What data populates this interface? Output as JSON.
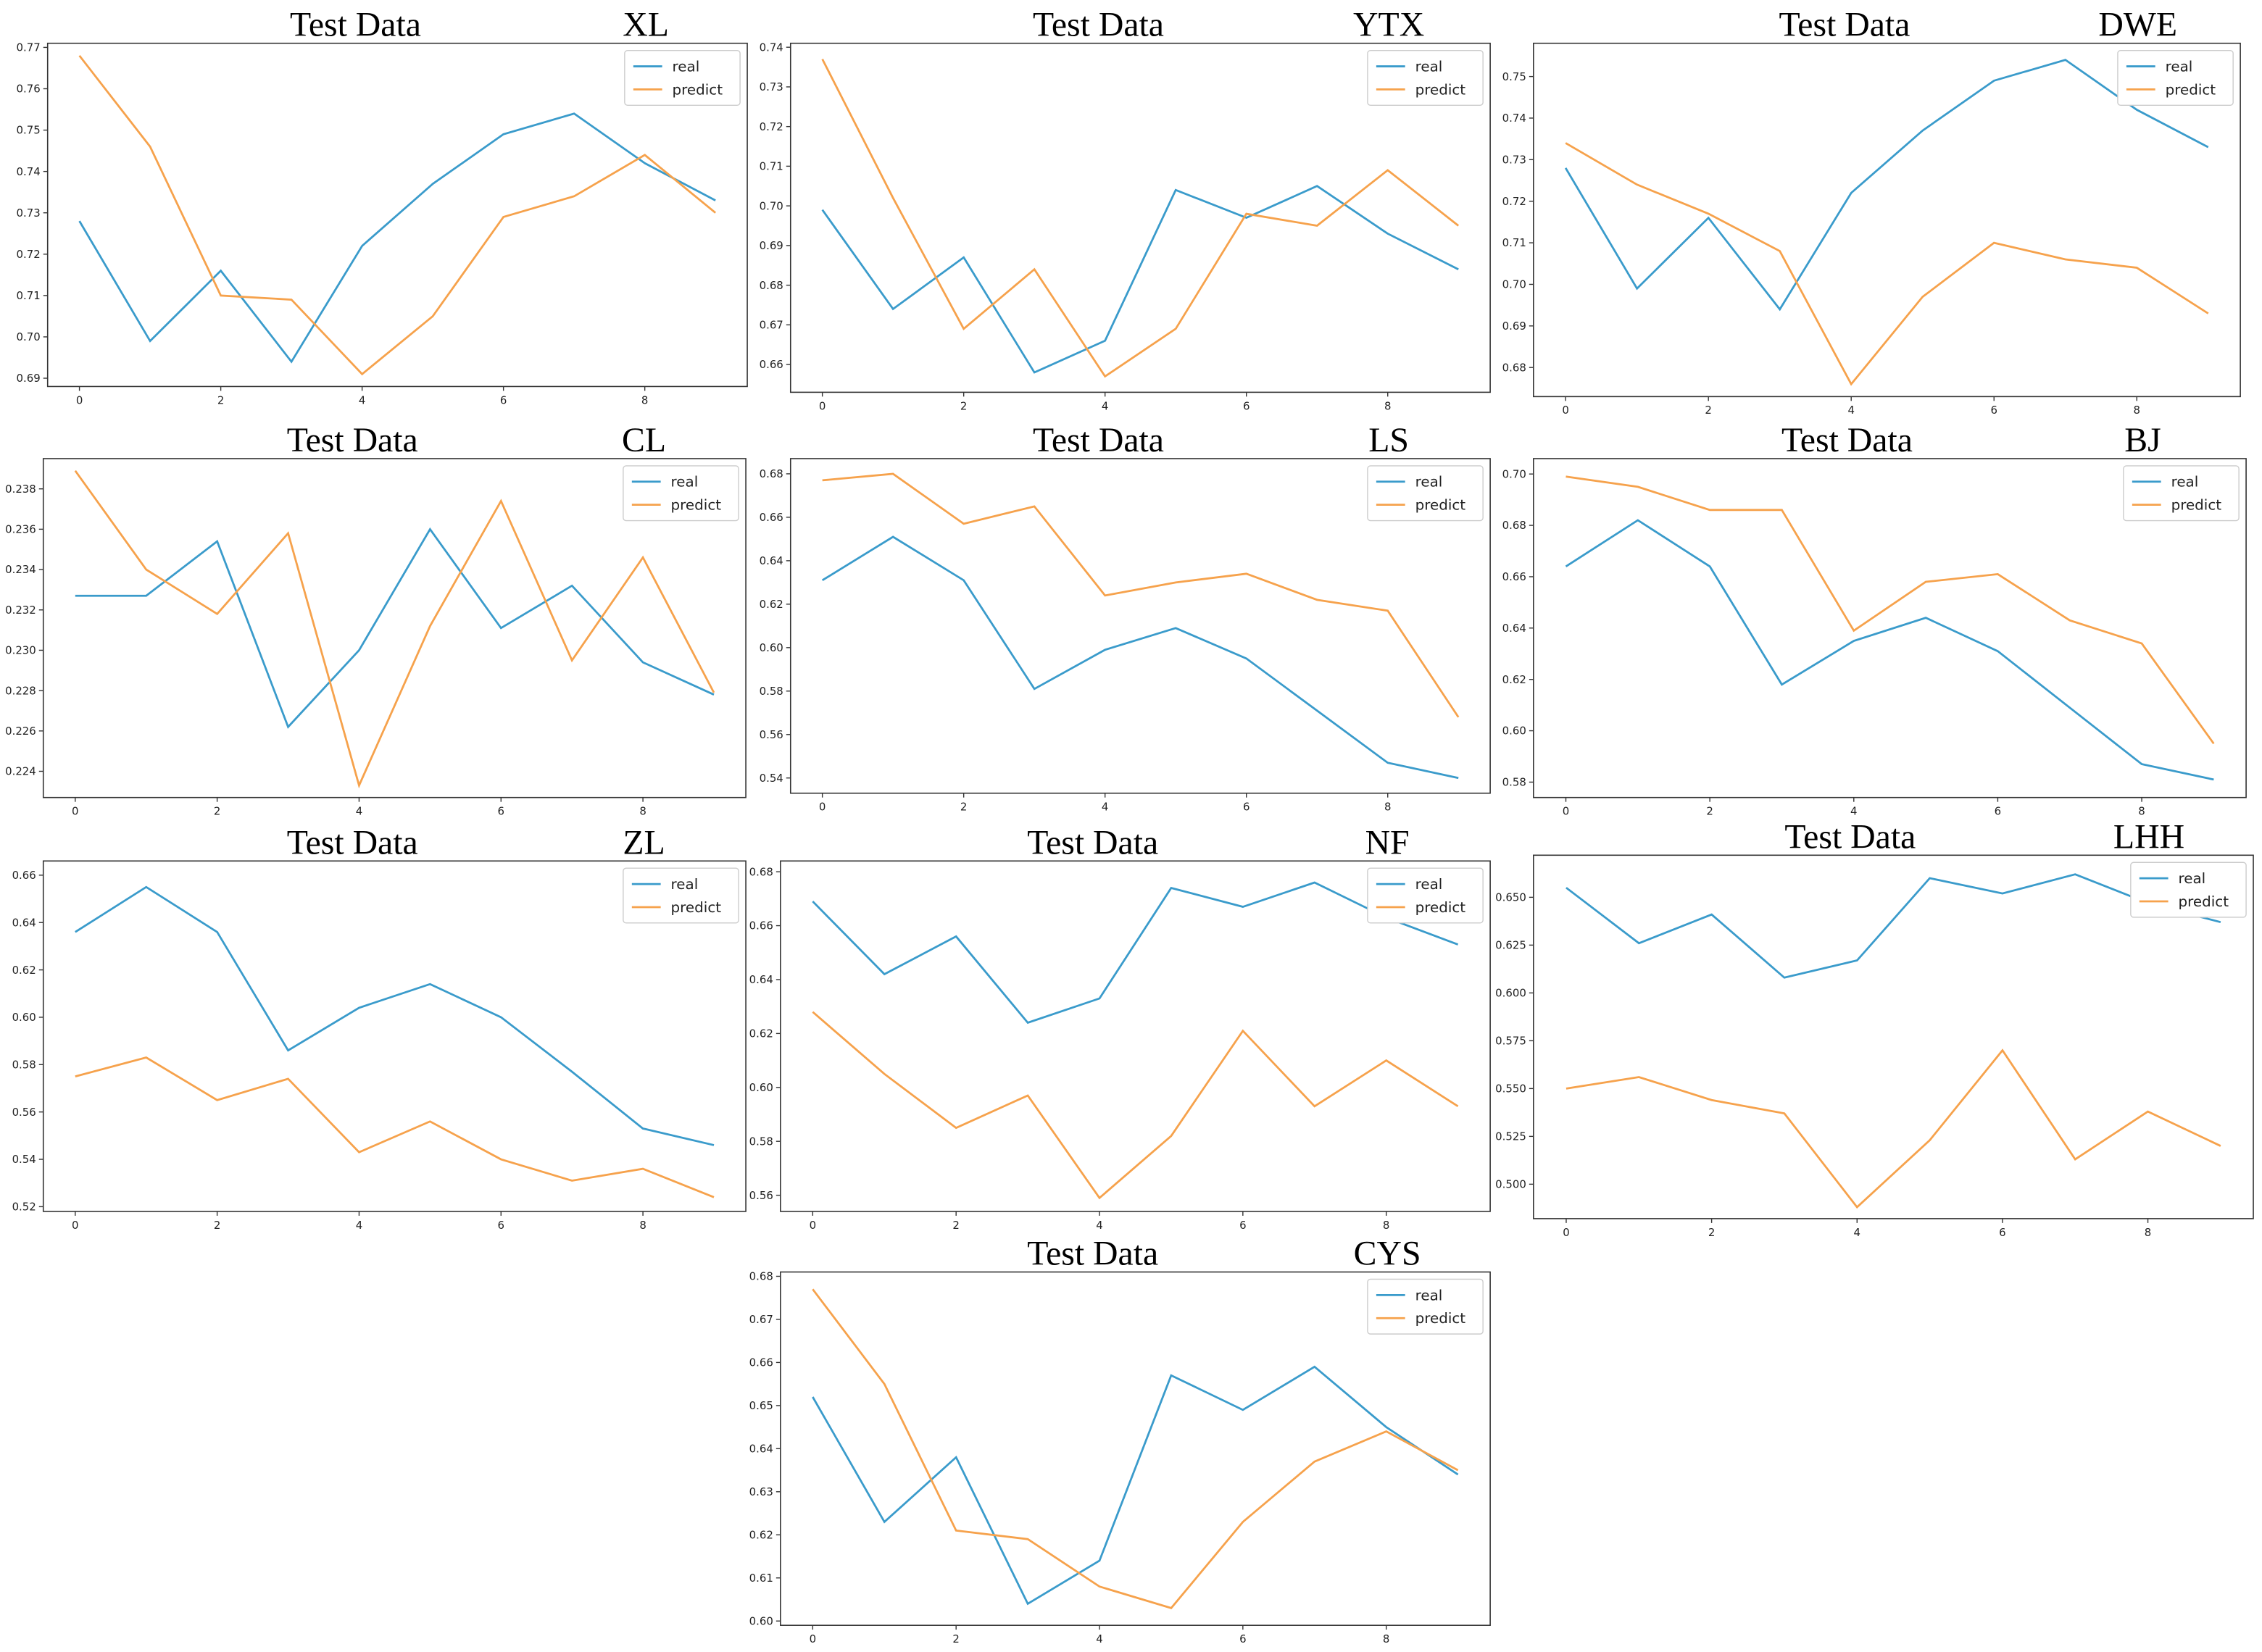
{
  "chart_data": [
    {
      "type": "line",
      "title": "Test Data",
      "label": "XL",
      "x": [
        0,
        1,
        2,
        3,
        4,
        5,
        6,
        7,
        8,
        9
      ],
      "xlim": [
        -0.45,
        9.45
      ],
      "xticks": [
        0,
        2,
        4,
        6,
        8
      ],
      "ylim": [
        0.688,
        0.771
      ],
      "yticks": [
        0.69,
        {
          "value": 0.7,
          "label": "0.70"
        },
        0.71,
        0.72,
        0.73,
        0.74,
        0.75,
        0.76,
        0.77
      ],
      "legend": "upper right",
      "series": [
        {
          "name": "real",
          "color": "#3a9bcb",
          "values": [
            0.728,
            0.699,
            0.716,
            0.694,
            0.722,
            0.737,
            0.749,
            0.754,
            0.742,
            0.733
          ]
        },
        {
          "name": "predict",
          "color": "#f6a24c",
          "values": [
            0.768,
            0.746,
            0.71,
            0.709,
            0.691,
            0.705,
            0.729,
            0.734,
            0.744,
            0.73
          ]
        }
      ]
    },
    {
      "type": "line",
      "title": "Test Data",
      "label": "YTX",
      "x": [
        0,
        1,
        2,
        3,
        4,
        5,
        6,
        7,
        8,
        9
      ],
      "xlim": [
        -0.45,
        9.45
      ],
      "xticks": [
        0,
        2,
        4,
        6,
        8
      ],
      "ylim": [
        0.653,
        0.741
      ],
      "yticks": [
        0.66,
        0.67,
        0.68,
        0.69,
        {
          "value": 0.7,
          "label": "0.70"
        },
        0.71,
        0.72,
        0.73,
        0.74
      ],
      "legend": "upper right",
      "series": [
        {
          "name": "real",
          "color": "#3a9bcb",
          "values": [
            0.699,
            0.674,
            0.687,
            0.658,
            0.666,
            0.704,
            0.697,
            0.705,
            0.693,
            0.684
          ]
        },
        {
          "name": "predict",
          "color": "#f6a24c",
          "values": [
            0.737,
            0.702,
            0.669,
            0.684,
            0.657,
            0.669,
            0.698,
            0.695,
            0.709,
            0.695
          ]
        }
      ]
    },
    {
      "type": "line",
      "title": "Test Data",
      "label": "DWE",
      "x": [
        0,
        1,
        2,
        3,
        4,
        5,
        6,
        7,
        8,
        9
      ],
      "xlim": [
        -0.45,
        9.45
      ],
      "xticks": [
        0,
        2,
        4,
        6,
        8
      ],
      "ylim": [
        0.673,
        0.758
      ],
      "yticks": [
        0.68,
        0.69,
        {
          "value": 0.7,
          "label": "0.70"
        },
        0.71,
        0.72,
        0.73,
        0.74,
        0.75
      ],
      "legend": "upper right",
      "series": [
        {
          "name": "real",
          "color": "#3a9bcb",
          "values": [
            0.728,
            0.699,
            0.716,
            0.694,
            0.722,
            0.737,
            0.749,
            0.754,
            0.742,
            0.733
          ]
        },
        {
          "name": "predict",
          "color": "#f6a24c",
          "values": [
            0.734,
            0.724,
            0.717,
            0.708,
            0.676,
            0.697,
            0.71,
            0.706,
            0.704,
            0.693
          ]
        }
      ]
    },
    {
      "type": "line",
      "title": "Test Data",
      "label": "CL",
      "x": [
        0,
        1,
        2,
        3,
        4,
        5,
        6,
        7,
        8,
        9
      ],
      "xlim": [
        -0.45,
        9.45
      ],
      "xticks": [
        0,
        2,
        4,
        6,
        8
      ],
      "ylim": [
        0.2227,
        0.2395
      ],
      "yticks": [
        0.224,
        0.226,
        0.228,
        {
          "value": 0.23,
          "label": "0.230"
        },
        0.232,
        0.234,
        0.236,
        0.238
      ],
      "legend": "upper right",
      "series": [
        {
          "name": "real",
          "color": "#3a9bcb",
          "values": [
            0.2327,
            0.2327,
            0.2354,
            0.2262,
            0.23,
            0.236,
            0.2311,
            0.2332,
            0.2294,
            0.2278
          ]
        },
        {
          "name": "predict",
          "color": "#f6a24c",
          "values": [
            0.2389,
            0.234,
            0.2318,
            0.2358,
            0.2233,
            0.2312,
            0.2374,
            0.2295,
            0.2346,
            0.2279
          ]
        }
      ]
    },
    {
      "type": "line",
      "title": "Test Data",
      "label": "LS",
      "x": [
        0,
        1,
        2,
        3,
        4,
        5,
        6,
        7,
        8,
        9
      ],
      "xlim": [
        -0.45,
        9.45
      ],
      "xticks": [
        0,
        2,
        4,
        6,
        8
      ],
      "ylim": [
        0.533,
        0.687
      ],
      "yticks": [
        0.54,
        0.56,
        0.58,
        {
          "value": 0.6,
          "label": "0.60"
        },
        0.62,
        0.64,
        0.66,
        0.68
      ],
      "legend": "upper right",
      "series": [
        {
          "name": "real",
          "color": "#3a9bcb",
          "values": [
            0.631,
            0.651,
            0.631,
            0.581,
            0.599,
            0.609,
            0.595,
            0.571,
            0.547,
            0.54
          ]
        },
        {
          "name": "predict",
          "color": "#f6a24c",
          "values": [
            0.677,
            0.68,
            0.657,
            0.665,
            0.624,
            0.63,
            0.634,
            0.622,
            0.617,
            0.568
          ]
        }
      ]
    },
    {
      "type": "line",
      "title": "Test Data",
      "label": "BJ",
      "x": [
        0,
        1,
        2,
        3,
        4,
        5,
        6,
        7,
        8,
        9
      ],
      "xlim": [
        -0.45,
        9.45
      ],
      "xticks": [
        0,
        2,
        4,
        6,
        8
      ],
      "ylim": [
        0.574,
        0.706
      ],
      "yticks": [
        0.58,
        {
          "value": 0.6,
          "label": "0.60"
        },
        0.62,
        0.64,
        0.66,
        0.68,
        {
          "value": 0.7,
          "label": "0.70"
        }
      ],
      "legend": "upper right",
      "series": [
        {
          "name": "real",
          "color": "#3a9bcb",
          "values": [
            0.664,
            0.682,
            0.664,
            0.618,
            0.635,
            0.644,
            0.631,
            0.609,
            0.587,
            0.581
          ]
        },
        {
          "name": "predict",
          "color": "#f6a24c",
          "values": [
            0.699,
            0.695,
            0.686,
            0.686,
            0.639,
            0.658,
            0.661,
            0.643,
            0.634,
            0.595
          ]
        }
      ]
    },
    {
      "type": "line",
      "title": "Test Data",
      "label": "ZL",
      "x": [
        0,
        1,
        2,
        3,
        4,
        5,
        6,
        7,
        8,
        9
      ],
      "xlim": [
        -0.45,
        9.45
      ],
      "xticks": [
        0,
        2,
        4,
        6,
        8
      ],
      "ylim": [
        0.518,
        0.666
      ],
      "yticks": [
        0.52,
        0.54,
        0.56,
        0.58,
        {
          "value": 0.6,
          "label": "0.60"
        },
        0.62,
        0.64,
        0.66
      ],
      "legend": "upper right",
      "series": [
        {
          "name": "real",
          "color": "#3a9bcb",
          "values": [
            0.636,
            0.655,
            0.636,
            0.586,
            0.604,
            0.614,
            0.6,
            0.577,
            0.553,
            0.546
          ]
        },
        {
          "name": "predict",
          "color": "#f6a24c",
          "values": [
            0.575,
            0.583,
            0.565,
            0.574,
            0.543,
            0.556,
            0.54,
            0.531,
            0.536,
            0.524
          ]
        }
      ]
    },
    {
      "type": "line",
      "title": "Test Data",
      "label": "NF",
      "x": [
        0,
        1,
        2,
        3,
        4,
        5,
        6,
        7,
        8,
        9
      ],
      "xlim": [
        -0.45,
        9.45
      ],
      "xticks": [
        0,
        2,
        4,
        6,
        8
      ],
      "ylim": [
        0.554,
        0.684
      ],
      "yticks": [
        0.56,
        0.58,
        {
          "value": 0.6,
          "label": "0.60"
        },
        0.62,
        0.64,
        0.66,
        0.68
      ],
      "legend": "upper right",
      "series": [
        {
          "name": "real",
          "color": "#3a9bcb",
          "values": [
            0.669,
            0.642,
            0.656,
            0.624,
            0.633,
            0.674,
            0.667,
            0.676,
            0.663,
            0.653
          ]
        },
        {
          "name": "predict",
          "color": "#f6a24c",
          "values": [
            0.628,
            0.605,
            0.585,
            0.597,
            0.559,
            0.582,
            0.621,
            0.593,
            0.61,
            0.593
          ]
        }
      ]
    },
    {
      "type": "line",
      "title": "Test Data",
      "label": "LHH",
      "x": [
        0,
        1,
        2,
        3,
        4,
        5,
        6,
        7,
        8,
        9
      ],
      "xlim": [
        -0.45,
        9.45
      ],
      "xticks": [
        0,
        2,
        4,
        6,
        8
      ],
      "ylim": [
        0.482,
        0.672
      ],
      "yticks": [
        {
          "value": 0.5,
          "label": "0.500"
        },
        0.525,
        {
          "value": 0.55,
          "label": "0.550"
        },
        0.575,
        {
          "value": 0.6,
          "label": "0.600"
        },
        0.625,
        {
          "value": 0.65,
          "label": "0.650"
        }
      ],
      "legend": "upper right",
      "series": [
        {
          "name": "real",
          "color": "#3a9bcb",
          "values": [
            0.655,
            0.626,
            0.641,
            0.608,
            0.617,
            0.66,
            0.652,
            0.662,
            0.647,
            0.637
          ]
        },
        {
          "name": "predict",
          "color": "#f6a24c",
          "values": [
            0.55,
            0.556,
            0.544,
            0.537,
            0.488,
            0.523,
            0.57,
            0.513,
            0.538,
            0.52
          ]
        }
      ]
    },
    {
      "type": "line",
      "title": "Test Data",
      "label": "CYS",
      "x": [
        0,
        1,
        2,
        3,
        4,
        5,
        6,
        7,
        8,
        9
      ],
      "xlim": [
        -0.45,
        9.45
      ],
      "xticks": [
        0,
        2,
        4,
        6,
        8
      ],
      "ylim": [
        0.599,
        0.681
      ],
      "yticks": [
        {
          "value": 0.6,
          "label": "0.60"
        },
        0.61,
        0.62,
        0.63,
        0.64,
        0.65,
        0.66,
        0.67,
        0.68
      ],
      "legend": "upper right",
      "series": [
        {
          "name": "real",
          "color": "#3a9bcb",
          "values": [
            0.652,
            0.623,
            0.638,
            0.604,
            0.614,
            0.657,
            0.649,
            0.659,
            0.645,
            0.634
          ]
        },
        {
          "name": "predict",
          "color": "#f6a24c",
          "values": [
            0.677,
            0.655,
            0.621,
            0.619,
            0.608,
            0.603,
            0.623,
            0.637,
            0.644,
            0.635
          ]
        }
      ]
    }
  ]
}
